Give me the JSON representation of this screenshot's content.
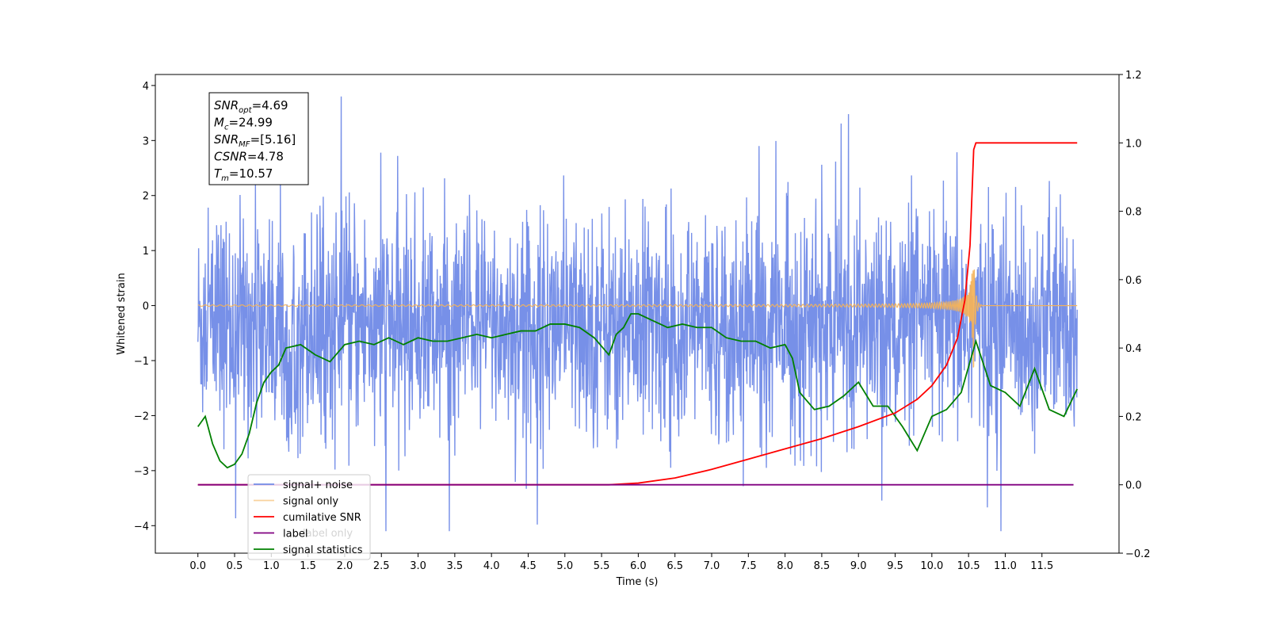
{
  "chart_data": {
    "type": "line",
    "xlabel": "Time (s)",
    "ylabel": "Whitened strain",
    "xlim": [
      -0.58,
      12.55
    ],
    "ylim": [
      -4.5,
      4.2
    ],
    "y2lim": [
      -0.2,
      1.2
    ],
    "x_ticks": [
      "0.0",
      "0.5",
      "1.0",
      "1.5",
      "2.0",
      "2.5",
      "3.0",
      "3.5",
      "4.0",
      "4.5",
      "5.0",
      "5.5",
      "6.0",
      "6.5",
      "7.0",
      "7.5",
      "8.0",
      "8.5",
      "9.0",
      "9.5",
      "10.0",
      "10.5",
      "11.0",
      "11.5"
    ],
    "y_ticks": [
      "4",
      "3",
      "2",
      "1",
      "0",
      "−1",
      "−2",
      "−3",
      "−4"
    ],
    "y2_ticks": [
      "1.2",
      "1.0",
      "0.8",
      "0.6",
      "0.4",
      "0.2",
      "0.0",
      "−0.2"
    ],
    "grid": false,
    "legend_position": "lower-left",
    "series": [
      {
        "name": "signal+ noise",
        "color": "#6b87e6",
        "axis": "left",
        "x_range": [
          0.0,
          11.98
        ],
        "approx_range": [
          -4.1,
          3.8
        ]
      },
      {
        "name": "signal only",
        "color": "#f4b35a",
        "axis": "left",
        "merger_time": 10.57
      },
      {
        "name": "cumilative SNR",
        "color": "#ff0000",
        "axis": "right",
        "x": [
          0.0,
          5.6,
          6.0,
          6.5,
          7.0,
          7.5,
          8.0,
          8.5,
          9.0,
          9.5,
          9.8,
          10.0,
          10.2,
          10.35,
          10.45,
          10.52,
          10.57,
          10.6,
          11.98
        ],
        "values": [
          0.0,
          0.0,
          0.005,
          0.02,
          0.045,
          0.075,
          0.105,
          0.135,
          0.17,
          0.21,
          0.25,
          0.29,
          0.35,
          0.43,
          0.54,
          0.7,
          0.98,
          1.0,
          1.0
        ]
      },
      {
        "name": "label",
        "color": "#800080",
        "axis": "right",
        "x": [
          0.0,
          11.93
        ],
        "values": [
          0.0,
          0.0
        ]
      },
      {
        "name": "signal statistics",
        "color": "#008000",
        "axis": "right",
        "x": [
          0.0,
          0.1,
          0.2,
          0.3,
          0.4,
          0.5,
          0.6,
          0.7,
          0.8,
          0.9,
          1.0,
          1.1,
          1.2,
          1.4,
          1.6,
          1.8,
          2.0,
          2.2,
          2.4,
          2.6,
          2.8,
          3.0,
          3.2,
          3.4,
          3.6,
          3.8,
          4.0,
          4.2,
          4.4,
          4.6,
          4.8,
          5.0,
          5.2,
          5.4,
          5.6,
          5.7,
          5.8,
          5.9,
          6.0,
          6.2,
          6.4,
          6.6,
          6.8,
          7.0,
          7.2,
          7.4,
          7.6,
          7.8,
          8.0,
          8.1,
          8.2,
          8.4,
          8.6,
          8.8,
          9.0,
          9.2,
          9.4,
          9.6,
          9.8,
          10.0,
          10.2,
          10.4,
          10.6,
          10.8,
          11.0,
          11.2,
          11.4,
          11.6,
          11.8,
          11.98
        ],
        "values": [
          0.17,
          0.2,
          0.12,
          0.07,
          0.05,
          0.06,
          0.09,
          0.15,
          0.24,
          0.3,
          0.33,
          0.35,
          0.4,
          0.41,
          0.38,
          0.36,
          0.41,
          0.42,
          0.41,
          0.43,
          0.41,
          0.43,
          0.42,
          0.42,
          0.43,
          0.44,
          0.43,
          0.44,
          0.45,
          0.45,
          0.47,
          0.47,
          0.46,
          0.43,
          0.38,
          0.44,
          0.46,
          0.5,
          0.5,
          0.48,
          0.46,
          0.47,
          0.46,
          0.46,
          0.43,
          0.42,
          0.42,
          0.4,
          0.41,
          0.37,
          0.27,
          0.22,
          0.23,
          0.26,
          0.3,
          0.23,
          0.23,
          0.17,
          0.1,
          0.2,
          0.22,
          0.27,
          0.42,
          0.29,
          0.27,
          0.23,
          0.34,
          0.22,
          0.2,
          0.28
        ]
      }
    ],
    "annotation": [
      {
        "sym": "SNR",
        "sub": "opt",
        "value": "=4.69"
      },
      {
        "sym": "M",
        "sub": "c",
        "value": "=24.99"
      },
      {
        "sym": "SNR",
        "sub": "MF",
        "value": "=[5.16]"
      },
      {
        "sym": "CSNR",
        "sub": "",
        "value": "=4.78"
      },
      {
        "sym": "T",
        "sub": "m",
        "value": "=10.57"
      }
    ],
    "legend_overlap_text": "label only"
  }
}
